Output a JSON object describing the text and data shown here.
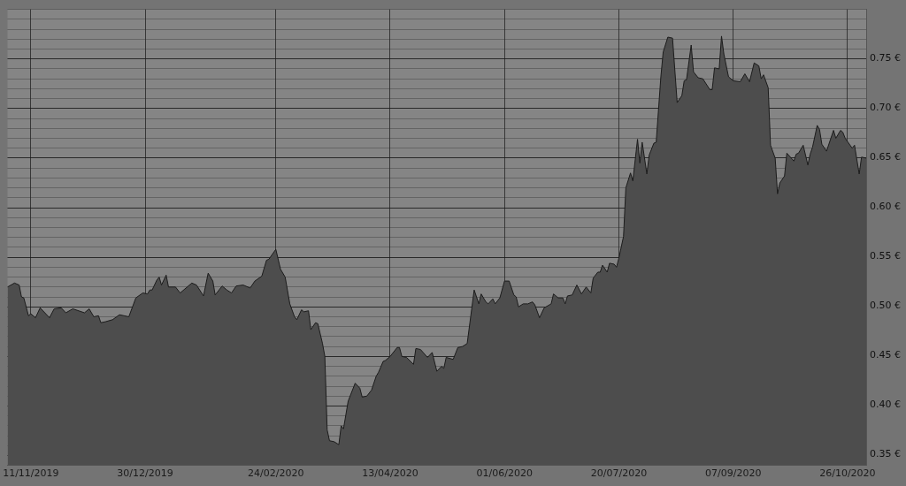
{
  "chart_data": {
    "type": "area",
    "xlim": [
      "2019-11-01",
      "2020-11-03"
    ],
    "ylim": [
      0.34,
      0.8
    ],
    "xticks": [
      {
        "value": "2019-11-11",
        "label": "11/11/2019"
      },
      {
        "value": "2019-12-30",
        "label": "30/12/2019"
      },
      {
        "value": "2020-02-24",
        "label": "24/02/2020"
      },
      {
        "value": "2020-04-13",
        "label": "13/04/2020"
      },
      {
        "value": "2020-06-01",
        "label": "01/06/2020"
      },
      {
        "value": "2020-07-20",
        "label": "20/07/2020"
      },
      {
        "value": "2020-09-07",
        "label": "07/09/2020"
      },
      {
        "value": "2020-10-26",
        "label": "26/10/2020"
      }
    ],
    "yticks": [
      {
        "value": 0.35,
        "label": "0.35 €"
      },
      {
        "value": 0.36,
        "label": null
      },
      {
        "value": 0.37,
        "label": null
      },
      {
        "value": 0.38,
        "label": null
      },
      {
        "value": 0.39,
        "label": null
      },
      {
        "value": 0.4,
        "label": "0.40 €"
      },
      {
        "value": 0.41,
        "label": null
      },
      {
        "value": 0.42,
        "label": null
      },
      {
        "value": 0.43,
        "label": null
      },
      {
        "value": 0.44,
        "label": null
      },
      {
        "value": 0.45,
        "label": "0.45 €"
      },
      {
        "value": 0.46,
        "label": null
      },
      {
        "value": 0.47,
        "label": null
      },
      {
        "value": 0.48,
        "label": null
      },
      {
        "value": 0.49,
        "label": null
      },
      {
        "value": 0.5,
        "label": "0.50 €"
      },
      {
        "value": 0.51,
        "label": null
      },
      {
        "value": 0.52,
        "label": null
      },
      {
        "value": 0.53,
        "label": null
      },
      {
        "value": 0.54,
        "label": null
      },
      {
        "value": 0.55,
        "label": "0.55 €"
      },
      {
        "value": 0.56,
        "label": null
      },
      {
        "value": 0.57,
        "label": null
      },
      {
        "value": 0.58,
        "label": null
      },
      {
        "value": 0.59,
        "label": null
      },
      {
        "value": 0.6,
        "label": "0.60 €"
      },
      {
        "value": 0.61,
        "label": null
      },
      {
        "value": 0.62,
        "label": null
      },
      {
        "value": 0.63,
        "label": null
      },
      {
        "value": 0.64,
        "label": null
      },
      {
        "value": 0.65,
        "label": "0.65 €"
      },
      {
        "value": 0.66,
        "label": null
      },
      {
        "value": 0.67,
        "label": null
      },
      {
        "value": 0.68,
        "label": null
      },
      {
        "value": 0.69,
        "label": null
      },
      {
        "value": 0.7,
        "label": "0.70 €"
      },
      {
        "value": 0.71,
        "label": null
      },
      {
        "value": 0.72,
        "label": null
      },
      {
        "value": 0.73,
        "label": null
      },
      {
        "value": 0.74,
        "label": null
      },
      {
        "value": 0.75,
        "label": "0.75 €"
      },
      {
        "value": 0.76,
        "label": null
      },
      {
        "value": 0.77,
        "label": null
      },
      {
        "value": 0.78,
        "label": null
      },
      {
        "value": 0.79,
        "label": null
      },
      {
        "value": 0.8,
        "label": null
      }
    ],
    "grid": true,
    "legend": false,
    "marker": "none",
    "line_style": "solid",
    "x": [
      "2019-11-01",
      "2019-11-04",
      "2019-11-06",
      "2019-11-07",
      "2019-11-08",
      "2019-11-10",
      "2019-11-11",
      "2019-11-13",
      "2019-11-15",
      "2019-11-19",
      "2019-11-21",
      "2019-11-24",
      "2019-11-26",
      "2019-11-29",
      "2019-12-04",
      "2019-12-06",
      "2019-12-08",
      "2019-12-10",
      "2019-12-11",
      "2019-12-13",
      "2019-12-16",
      "2019-12-19",
      "2019-12-23",
      "2019-12-26",
      "2019-12-29",
      "2019-12-31",
      "2020-01-01",
      "2020-01-02",
      "2020-01-04",
      "2020-01-05",
      "2020-01-06",
      "2020-01-08",
      "2020-01-09",
      "2020-01-12",
      "2020-01-14",
      "2020-01-16",
      "2020-01-19",
      "2020-01-21",
      "2020-01-24",
      "2020-01-26",
      "2020-01-28",
      "2020-01-29",
      "2020-02-01",
      "2020-02-03",
      "2020-02-05",
      "2020-02-07",
      "2020-02-10",
      "2020-02-13",
      "2020-02-15",
      "2020-02-18",
      "2020-02-20",
      "2020-02-21",
      "2020-02-24",
      "2020-02-26",
      "2020-02-28",
      "2020-03-01",
      "2020-03-03",
      "2020-03-04",
      "2020-03-06",
      "2020-03-07",
      "2020-03-09",
      "2020-03-10",
      "2020-03-12",
      "2020-03-13",
      "2020-03-15",
      "2020-03-16",
      "2020-03-17",
      "2020-03-18",
      "2020-03-20",
      "2020-03-22",
      "2020-03-23",
      "2020-03-24",
      "2020-03-26",
      "2020-03-29",
      "2020-03-31",
      "2020-04-01",
      "2020-04-03",
      "2020-04-05",
      "2020-04-07",
      "2020-04-08",
      "2020-04-10",
      "2020-04-11",
      "2020-04-13",
      "2020-04-16",
      "2020-04-17",
      "2020-04-18",
      "2020-04-20",
      "2020-04-23",
      "2020-04-24",
      "2020-04-26",
      "2020-04-29",
      "2020-05-01",
      "2020-05-03",
      "2020-05-05",
      "2020-05-06",
      "2020-05-07",
      "2020-05-10",
      "2020-05-12",
      "2020-05-14",
      "2020-05-16",
      "2020-05-19",
      "2020-05-21",
      "2020-05-22",
      "2020-05-24",
      "2020-05-25",
      "2020-05-27",
      "2020-05-28",
      "2020-05-30",
      "2020-06-01",
      "2020-06-03",
      "2020-06-05",
      "2020-06-06",
      "2020-06-07",
      "2020-06-09",
      "2020-06-11",
      "2020-06-13",
      "2020-06-14",
      "2020-06-16",
      "2020-06-18",
      "2020-06-21",
      "2020-06-22",
      "2020-06-24",
      "2020-06-26",
      "2020-06-27",
      "2020-06-28",
      "2020-06-30",
      "2020-07-02",
      "2020-07-04",
      "2020-07-06",
      "2020-07-08",
      "2020-07-09",
      "2020-07-11",
      "2020-07-12",
      "2020-07-13",
      "2020-07-15",
      "2020-07-16",
      "2020-07-18",
      "2020-07-19",
      "2020-07-20",
      "2020-07-22",
      "2020-07-23",
      "2020-07-25",
      "2020-07-26",
      "2020-07-28",
      "2020-07-29",
      "2020-07-30",
      "2020-08-01",
      "2020-08-02",
      "2020-08-04",
      "2020-08-05",
      "2020-08-07",
      "2020-08-08",
      "2020-08-10",
      "2020-08-12",
      "2020-08-14",
      "2020-08-16",
      "2020-08-17",
      "2020-08-18",
      "2020-08-20",
      "2020-08-21",
      "2020-08-23",
      "2020-08-25",
      "2020-08-28",
      "2020-08-29",
      "2020-08-30",
      "2020-09-01",
      "2020-09-02",
      "2020-09-03",
      "2020-09-05",
      "2020-09-07",
      "2020-09-10",
      "2020-09-12",
      "2020-09-14",
      "2020-09-16",
      "2020-09-18",
      "2020-09-19",
      "2020-09-20",
      "2020-09-22",
      "2020-09-23",
      "2020-09-25",
      "2020-09-26",
      "2020-09-27",
      "2020-09-29",
      "2020-09-30",
      "2020-10-03",
      "2020-10-04",
      "2020-10-05",
      "2020-10-07",
      "2020-10-09",
      "2020-10-10",
      "2020-10-11",
      "2020-10-13",
      "2020-10-14",
      "2020-10-15",
      "2020-10-17",
      "2020-10-20",
      "2020-10-21",
      "2020-10-23",
      "2020-10-24",
      "2020-10-25",
      "2020-10-28",
      "2020-10-29",
      "2020-10-31",
      "2020-11-01",
      "2020-11-03"
    ],
    "series": [
      {
        "color": "#4d4d4d",
        "values": [
          0.52,
          0.524,
          0.522,
          0.51,
          0.509,
          0.491,
          0.493,
          0.489,
          0.499,
          0.489,
          0.498,
          0.499,
          0.494,
          0.498,
          0.494,
          0.498,
          0.49,
          0.491,
          0.484,
          0.485,
          0.487,
          0.492,
          0.49,
          0.509,
          0.514,
          0.513,
          0.517,
          0.517,
          0.527,
          0.53,
          0.522,
          0.532,
          0.52,
          0.52,
          0.514,
          0.518,
          0.524,
          0.522,
          0.511,
          0.534,
          0.526,
          0.512,
          0.521,
          0.517,
          0.514,
          0.521,
          0.522,
          0.519,
          0.526,
          0.531,
          0.547,
          0.548,
          0.558,
          0.538,
          0.53,
          0.503,
          0.49,
          0.487,
          0.497,
          0.495,
          0.496,
          0.477,
          0.484,
          0.483,
          0.463,
          0.45,
          0.376,
          0.365,
          0.364,
          0.361,
          0.38,
          0.377,
          0.405,
          0.423,
          0.418,
          0.409,
          0.41,
          0.416,
          0.43,
          0.434,
          0.445,
          0.446,
          0.45,
          0.459,
          0.459,
          0.45,
          0.449,
          0.442,
          0.458,
          0.457,
          0.449,
          0.454,
          0.435,
          0.44,
          0.438,
          0.449,
          0.447,
          0.459,
          0.46,
          0.463,
          0.517,
          0.503,
          0.513,
          0.505,
          0.503,
          0.508,
          0.503,
          0.509,
          0.526,
          0.526,
          0.512,
          0.51,
          0.5,
          0.503,
          0.503,
          0.505,
          0.502,
          0.489,
          0.499,
          0.503,
          0.513,
          0.509,
          0.509,
          0.503,
          0.511,
          0.512,
          0.522,
          0.513,
          0.52,
          0.514,
          0.529,
          0.535,
          0.535,
          0.542,
          0.535,
          0.544,
          0.543,
          0.54,
          0.549,
          0.571,
          0.62,
          0.635,
          0.627,
          0.669,
          0.645,
          0.666,
          0.634,
          0.653,
          0.665,
          0.666,
          0.732,
          0.757,
          0.772,
          0.771,
          0.706,
          0.713,
          0.728,
          0.729,
          0.764,
          0.737,
          0.731,
          0.73,
          0.719,
          0.719,
          0.741,
          0.74,
          0.773,
          0.755,
          0.732,
          0.728,
          0.727,
          0.735,
          0.727,
          0.746,
          0.743,
          0.73,
          0.734,
          0.721,
          0.663,
          0.65,
          0.614,
          0.625,
          0.632,
          0.655,
          0.647,
          0.654,
          0.655,
          0.663,
          0.643,
          0.654,
          0.661,
          0.683,
          0.679,
          0.664,
          0.657,
          0.678,
          0.67,
          0.678,
          0.676,
          0.67,
          0.66,
          0.663,
          0.634,
          0.651,
          0.65
        ]
      }
    ]
  }
}
